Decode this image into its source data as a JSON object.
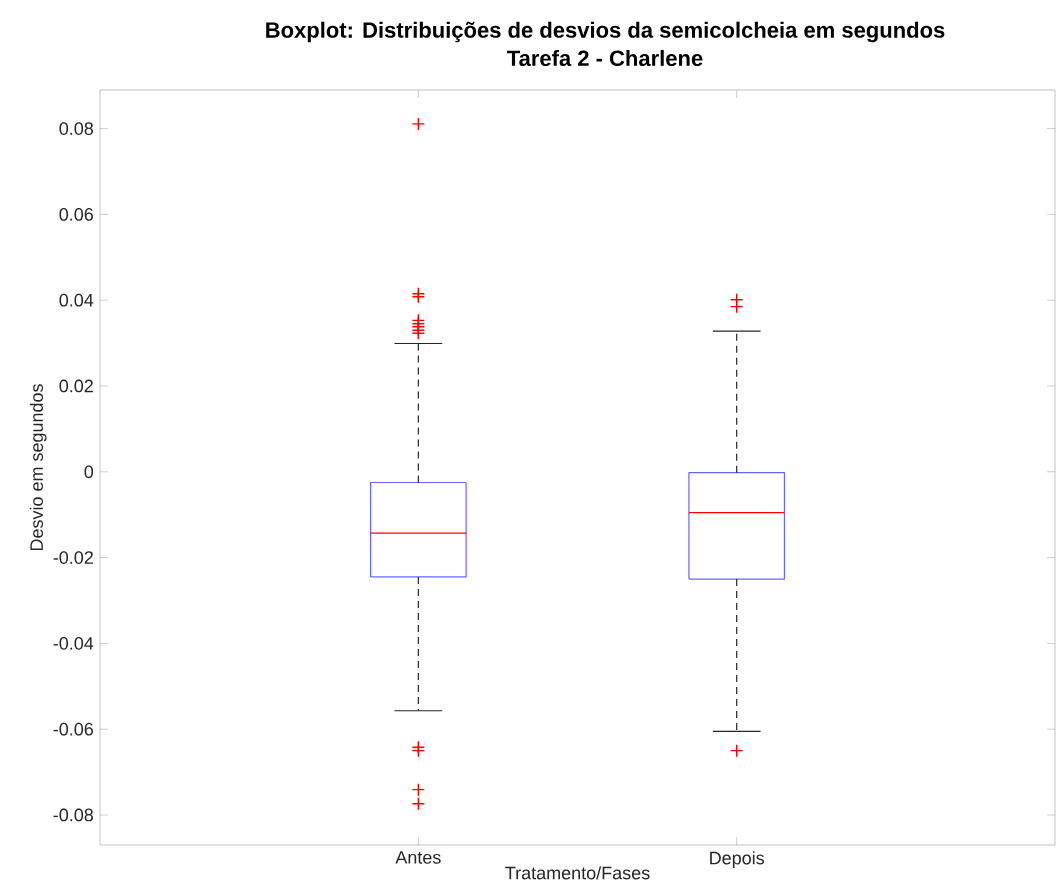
{
  "chart_data": {
    "type": "box",
    "title": "Boxplot: Distribuições de desvios da semicolcheia em segundos",
    "subtitle": "Tarefa 2 - Charlene",
    "xlabel": "Tratamento/Fases",
    "ylabel": "Desvio em segundos",
    "categories": [
      "Antes",
      "Depois"
    ],
    "series": [
      {
        "color": "#6666ff",
        "boxes": [
          {
            "low": -0.0557,
            "q1": -0.0245,
            "median": -0.0143,
            "q3": -0.0025,
            "high": 0.0299,
            "outliers": [
              0.0811,
              0.0415,
              0.0408,
              0.0353,
              0.0345,
              0.0338,
              0.033,
              0.0323,
              -0.0642,
              -0.065,
              -0.0741,
              -0.0774
            ]
          },
          {
            "low": -0.0605,
            "q1": -0.025,
            "median": -0.0095,
            "q3": -0.0002,
            "high": 0.0328,
            "outliers": [
              0.0401,
              0.0385,
              -0.065
            ]
          }
        ]
      }
    ],
    "ylim": [
      -0.087,
      0.089
    ],
    "yticks": [
      -0.08,
      -0.06,
      -0.04,
      -0.02,
      0,
      0.02,
      0.04,
      0.06,
      0.08
    ],
    "marker": "cross"
  }
}
